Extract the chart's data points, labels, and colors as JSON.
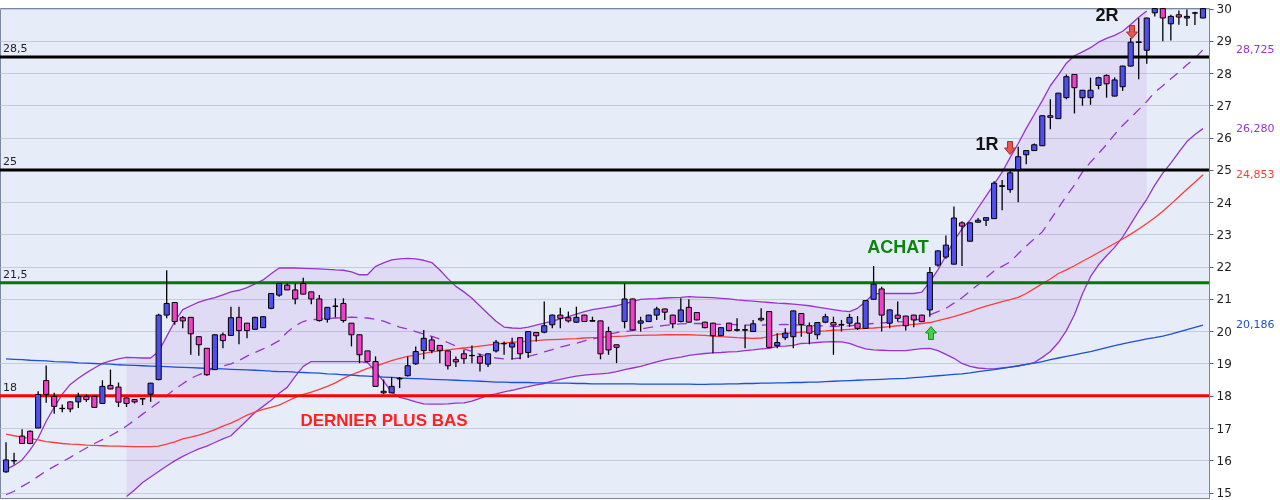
{
  "chart_data": {
    "type": "candlestick",
    "categories": [
      null,
      null,
      null,
      null,
      null,
      null,
      null,
      null,
      null,
      null,
      null,
      null,
      null,
      null,
      null,
      null,
      null,
      null,
      null,
      null,
      null,
      null,
      null,
      null,
      null,
      null,
      null,
      null,
      null,
      null,
      null,
      null,
      null,
      null,
      null,
      null,
      null,
      null,
      null,
      null,
      null,
      null,
      null,
      null,
      null,
      null,
      null,
      null,
      null,
      null,
      null,
      null,
      null,
      null,
      null,
      null,
      null,
      null,
      null,
      null,
      null,
      null,
      null,
      null,
      null,
      null,
      null,
      null,
      null,
      null,
      null,
      null,
      null,
      null,
      null,
      null,
      null,
      null,
      null,
      null,
      null,
      null,
      null,
      null,
      null,
      null,
      null,
      null,
      null,
      null,
      null,
      null,
      null,
      null,
      null,
      null,
      null,
      null,
      null,
      null,
      null,
      null,
      null,
      null,
      null,
      null,
      null,
      null,
      null,
      null,
      null,
      null,
      null,
      null,
      null,
      null,
      null,
      null,
      null,
      null,
      null,
      null,
      null,
      null,
      null,
      null,
      null,
      null,
      null,
      null,
      null,
      null,
      null,
      null,
      null,
      null,
      null,
      null,
      null,
      null,
      null,
      null,
      null,
      null,
      null,
      null,
      null,
      null,
      null,
      null
    ],
    "series": [
      {
        "type": "line",
        "color": "#9933cc",
        "values": [
          15.72,
          15.84,
          16.01,
          16.32,
          16.69,
          17.21,
          17.64,
          18.05,
          18.35,
          18.54,
          18.71,
          18.86,
          19.0,
          19.08,
          19.14,
          19.19,
          19.18,
          19.17,
          19.17,
          19.37,
          19.84,
          20.3,
          20.67,
          20.79,
          20.9,
          20.98,
          21.04,
          21.13,
          21.22,
          21.27,
          21.35,
          21.47,
          21.59,
          21.78,
          21.96,
          21.96,
          21.96,
          21.95,
          21.94,
          21.93,
          21.92,
          21.9,
          21.89,
          21.84,
          21.75,
          21.75,
          22.01,
          22.12,
          22.21,
          22.24,
          22.26,
          22.24,
          22.2,
          22.13,
          21.9,
          21.63,
          21.39,
          21.22,
          21.02,
          20.78,
          20.54,
          20.31,
          20.13,
          20.1,
          20.09,
          20.13,
          20.19,
          20.25,
          20.31,
          20.38,
          20.45,
          20.53,
          20.61,
          20.67,
          20.71,
          20.75,
          20.79,
          20.85,
          20.92,
          20.99,
          21.0,
          21.01,
          21.03,
          21.04,
          21.05,
          21.07,
          21.06,
          21.05,
          21.04,
          21.02,
          21.0,
          20.97,
          20.95,
          20.93,
          20.91,
          20.89,
          20.87,
          20.86,
          20.84,
          20.82,
          20.79,
          20.75,
          20.71,
          20.67,
          20.63,
          20.61,
          20.71,
          20.92,
          21.16,
          21.17,
          21.17,
          21.17,
          21.17,
          21.17,
          21.21,
          21.53,
          21.9,
          22.34,
          22.8,
          23.17,
          23.44,
          23.82,
          24.19,
          24.56,
          24.93,
          25.39,
          25.82,
          26.29,
          26.72,
          27.15,
          27.61,
          27.95,
          28.31,
          28.54,
          28.66,
          28.79,
          28.96,
          29.08,
          29.17,
          29.3,
          29.51,
          29.73,
          29.93,
          null,
          null,
          null,
          null,
          null,
          null,
          null
        ]
      },
      {
        "type": "line",
        "color": "#9933cc",
        "values": [
          null,
          null,
          null,
          null,
          null,
          null,
          null,
          null,
          null,
          null,
          null,
          null,
          null,
          null,
          null,
          14.88,
          15.08,
          15.31,
          15.48,
          15.65,
          15.82,
          15.98,
          16.12,
          16.24,
          16.35,
          16.44,
          16.55,
          16.66,
          16.76,
          17.0,
          17.24,
          17.49,
          17.67,
          17.86,
          18.08,
          18.26,
          18.6,
          18.91,
          19.06,
          19.06,
          19.06,
          19.06,
          19.06,
          19.06,
          19.06,
          19.03,
          18.75,
          18.45,
          18.11,
          17.95,
          17.89,
          17.81,
          17.75,
          17.74,
          17.74,
          17.75,
          17.77,
          17.78,
          17.83,
          17.92,
          18.01,
          18.06,
          18.12,
          18.17,
          18.23,
          18.28,
          18.34,
          18.38,
          18.45,
          18.51,
          18.56,
          18.61,
          18.64,
          18.66,
          18.68,
          18.7,
          18.75,
          18.81,
          18.86,
          18.91,
          18.98,
          19.05,
          19.11,
          19.16,
          19.2,
          19.25,
          19.28,
          19.31,
          19.33,
          19.34,
          19.36,
          19.37,
          19.4,
          19.42,
          19.45,
          19.47,
          19.53,
          19.54,
          19.56,
          19.62,
          19.63,
          19.65,
          19.67,
          19.68,
          19.67,
          19.62,
          19.53,
          19.45,
          19.42,
          19.41,
          19.4,
          19.4,
          19.4,
          19.43,
          19.46,
          19.47,
          19.4,
          19.28,
          19.16,
          19.0,
          18.91,
          18.86,
          18.84,
          18.83,
          18.86,
          18.89,
          18.92,
          18.97,
          19.03,
          19.19,
          19.37,
          19.65,
          20.02,
          20.51,
          21.16,
          21.69,
          22.06,
          22.34,
          22.6,
          22.92,
          23.32,
          23.72,
          24.09,
          24.53,
          24.9,
          25.21,
          25.55,
          25.88,
          26.1,
          26.28
        ]
      },
      {
        "type": "line",
        "color": "#9933cc",
        "line_style": "dashed",
        "values": [
          14.93,
          15.04,
          15.19,
          15.33,
          15.5,
          15.67,
          15.81,
          15.95,
          16.09,
          16.24,
          16.38,
          16.52,
          16.64,
          16.76,
          16.9,
          17.06,
          17.24,
          17.43,
          17.61,
          17.8,
          18.01,
          18.2,
          18.37,
          18.54,
          18.65,
          18.75,
          18.88,
          18.92,
          18.99,
          19.09,
          19.23,
          19.34,
          19.45,
          19.57,
          19.71,
          19.97,
          20.17,
          20.3,
          20.36,
          20.37,
          20.39,
          20.41,
          20.42,
          20.44,
          20.42,
          20.41,
          20.37,
          20.31,
          20.22,
          20.13,
          20.07,
          19.99,
          19.91,
          19.84,
          19.76,
          19.65,
          19.54,
          19.45,
          19.37,
          19.28,
          19.22,
          19.17,
          19.14,
          19.14,
          19.17,
          19.22,
          19.28,
          19.36,
          19.43,
          19.51,
          19.57,
          19.63,
          19.7,
          19.76,
          19.82,
          19.9,
          19.96,
          19.99,
          20.02,
          20.07,
          20.11,
          20.15,
          20.18,
          20.21,
          20.23,
          20.24,
          20.24,
          20.23,
          20.22,
          20.21,
          20.21,
          20.2,
          20.19,
          20.19,
          20.19,
          20.2,
          20.2,
          20.21,
          20.2,
          20.19,
          20.18,
          20.17,
          20.16,
          20.14,
          20.16,
          20.17,
          20.19,
          20.22,
          20.24,
          20.26,
          20.27,
          20.29,
          20.3,
          20.33,
          20.39,
          20.51,
          20.61,
          20.71,
          20.87,
          21.04,
          21.24,
          21.44,
          21.66,
          21.87,
          22.01,
          22.15,
          22.4,
          22.64,
          22.86,
          23.08,
          23.45,
          23.82,
          24.19,
          24.53,
          24.94,
          25.24,
          25.51,
          25.79,
          26.1,
          26.38,
          26.62,
          26.87,
          27.12,
          27.41,
          27.61,
          27.83,
          28.03,
          28.26,
          28.46,
          28.725
        ],
        "lower": [
          null,
          null,
          null,
          null,
          null,
          null,
          null,
          null,
          null,
          null,
          null,
          null,
          null,
          null,
          null,
          14.88,
          15.08,
          15.31,
          15.48,
          15.65,
          15.82,
          15.98,
          16.12,
          16.24,
          16.35,
          16.44,
          16.55,
          16.66,
          16.76,
          17.0,
          17.24,
          17.49,
          17.67,
          17.86,
          18.08,
          18.26,
          18.6,
          18.91,
          19.06,
          19.06,
          19.06,
          19.06,
          19.06,
          19.06,
          19.06,
          19.03,
          18.75,
          18.45,
          18.11,
          17.95,
          17.89,
          17.81,
          17.75,
          17.74,
          17.74,
          17.75,
          17.77,
          17.78,
          17.83,
          17.92,
          18.01,
          18.06,
          18.12,
          18.17,
          18.23,
          18.28,
          18.34,
          18.38,
          18.45,
          18.51,
          18.56,
          18.61,
          18.64,
          18.66,
          18.68,
          18.7,
          18.75,
          18.81,
          18.86,
          18.91,
          18.98,
          19.05,
          19.11,
          19.16,
          19.2,
          19.25,
          19.28,
          19.31,
          19.33,
          19.34,
          19.36,
          19.37,
          19.4,
          19.42,
          19.45,
          19.47,
          19.53,
          19.54,
          19.56,
          19.62,
          19.63,
          19.65,
          19.67,
          19.68,
          19.67,
          19.62,
          19.53,
          19.45,
          19.42,
          19.41,
          19.4,
          19.4,
          19.4,
          19.43,
          19.46,
          19.47,
          19.4,
          19.28,
          19.16,
          19.0,
          18.91,
          18.86,
          18.84,
          18.83,
          18.86,
          18.89,
          18.92,
          18.97,
          19.03,
          19.19,
          19.37,
          19.65,
          20.02,
          20.51,
          21.16,
          21.69,
          22.06,
          22.34,
          22.6,
          22.92,
          23.32,
          23.72,
          24.09,
          null,
          null,
          null,
          null,
          null,
          null,
          null
        ],
        "upper": [
          null,
          null,
          null,
          null,
          null,
          null,
          null,
          null,
          null,
          null,
          null,
          null,
          null,
          null,
          null,
          19.19,
          19.18,
          19.17,
          19.17,
          19.37,
          19.84,
          20.3,
          20.67,
          20.79,
          20.9,
          20.98,
          21.04,
          21.13,
          21.22,
          21.27,
          21.35,
          21.47,
          21.59,
          21.78,
          21.96,
          21.96,
          21.96,
          21.95,
          21.94,
          21.93,
          21.92,
          21.9,
          21.89,
          21.84,
          21.75,
          21.75,
          22.01,
          22.12,
          22.21,
          22.24,
          22.26,
          22.24,
          22.2,
          22.13,
          21.9,
          21.63,
          21.39,
          21.22,
          21.02,
          20.78,
          20.54,
          20.31,
          20.13,
          20.1,
          20.09,
          20.13,
          20.19,
          20.25,
          20.31,
          20.38,
          20.45,
          20.53,
          20.61,
          20.67,
          20.71,
          20.75,
          20.79,
          20.85,
          20.92,
          20.99,
          21.0,
          21.01,
          21.03,
          21.04,
          21.05,
          21.07,
          21.06,
          21.05,
          21.04,
          21.02,
          21.0,
          20.97,
          20.95,
          20.93,
          20.91,
          20.89,
          20.87,
          20.86,
          20.84,
          20.82,
          20.79,
          20.75,
          20.71,
          20.67,
          20.63,
          20.61,
          20.71,
          20.92,
          21.16,
          21.17,
          21.17,
          21.17,
          21.17,
          21.17,
          21.21,
          21.53,
          21.9,
          22.34,
          22.8,
          23.17,
          23.44,
          23.82,
          24.19,
          24.56,
          24.93,
          25.39,
          25.82,
          26.29,
          26.72,
          27.15,
          27.61,
          27.95,
          28.31,
          28.54,
          28.66,
          28.79,
          28.96,
          29.08,
          29.17,
          29.3,
          29.51,
          29.73,
          29.93,
          null,
          null,
          null,
          null,
          null,
          null,
          null
        ]
      },
      {
        "type": "line",
        "color": "#ff3b3b",
        "values": [
          16.81,
          16.76,
          16.72,
          16.67,
          16.63,
          16.58,
          16.55,
          16.52,
          16.5,
          16.49,
          16.47,
          16.46,
          16.45,
          16.44,
          16.44,
          16.43,
          16.42,
          16.42,
          16.42,
          16.44,
          16.5,
          16.57,
          16.66,
          16.72,
          16.78,
          16.86,
          16.95,
          17.06,
          17.15,
          17.27,
          17.4,
          17.49,
          17.58,
          17.64,
          17.71,
          17.83,
          17.95,
          18.04,
          18.11,
          18.2,
          18.29,
          18.4,
          18.54,
          18.65,
          18.75,
          18.85,
          18.91,
          19.0,
          19.09,
          19.16,
          19.22,
          19.26,
          19.31,
          19.36,
          19.39,
          19.42,
          19.45,
          19.48,
          19.51,
          19.54,
          19.57,
          19.6,
          19.63,
          19.66,
          19.67,
          19.69,
          19.71,
          19.73,
          19.74,
          19.75,
          19.76,
          19.77,
          19.79,
          19.8,
          19.81,
          19.83,
          19.84,
          19.85,
          19.87,
          19.87,
          19.88,
          19.88,
          19.89,
          19.89,
          19.89,
          19.89,
          19.88,
          19.87,
          19.85,
          19.83,
          19.82,
          19.8,
          19.79,
          19.78,
          19.79,
          19.83,
          19.9,
          19.93,
          19.95,
          19.97,
          19.98,
          20.0,
          20.01,
          20.03,
          20.04,
          20.06,
          20.07,
          20.09,
          20.1,
          20.12,
          20.14,
          20.17,
          20.19,
          20.21,
          20.24,
          20.27,
          20.33,
          20.39,
          20.45,
          20.53,
          20.61,
          20.7,
          20.78,
          20.85,
          20.92,
          20.98,
          21.05,
          21.17,
          21.32,
          21.47,
          21.62,
          21.79,
          21.9,
          22.03,
          22.17,
          22.3,
          22.44,
          22.58,
          22.72,
          22.86,
          23.01,
          23.17,
          23.34,
          23.52,
          23.72,
          23.94,
          24.17,
          24.4,
          24.62,
          24.853
        ]
      },
      {
        "type": "line",
        "color": "#1d4fd8",
        "values": [
          19.14,
          19.13,
          19.12,
          19.1,
          19.09,
          19.08,
          19.06,
          19.05,
          19.04,
          19.02,
          19.01,
          19.0,
          18.99,
          18.98,
          18.96,
          18.95,
          18.94,
          18.93,
          18.92,
          18.91,
          18.9,
          18.89,
          18.88,
          18.87,
          18.86,
          18.85,
          18.84,
          18.83,
          18.82,
          18.81,
          18.8,
          18.79,
          18.78,
          18.76,
          18.75,
          18.75,
          18.73,
          18.72,
          18.71,
          18.7,
          18.68,
          18.67,
          18.65,
          18.64,
          18.62,
          18.61,
          18.59,
          18.58,
          18.57,
          18.55,
          18.54,
          18.53,
          18.52,
          18.51,
          18.5,
          18.49,
          18.48,
          18.47,
          18.46,
          18.45,
          18.44,
          18.42,
          18.42,
          18.41,
          18.41,
          18.41,
          18.4,
          18.4,
          18.39,
          18.39,
          18.39,
          18.38,
          18.38,
          18.37,
          18.37,
          18.37,
          18.37,
          18.37,
          18.37,
          18.36,
          18.36,
          18.36,
          18.36,
          18.36,
          18.36,
          18.36,
          18.35,
          18.35,
          18.36,
          18.36,
          18.37,
          18.37,
          18.38,
          18.38,
          18.39,
          18.39,
          18.4,
          18.4,
          18.41,
          18.41,
          18.42,
          18.42,
          18.44,
          18.45,
          18.46,
          18.47,
          18.48,
          18.49,
          18.5,
          18.51,
          18.52,
          18.53,
          18.54,
          18.56,
          18.58,
          18.6,
          18.62,
          18.64,
          18.66,
          18.68,
          18.71,
          18.75,
          18.78,
          18.81,
          18.85,
          18.89,
          18.93,
          18.97,
          19.01,
          19.06,
          19.12,
          19.17,
          19.22,
          19.27,
          19.32,
          19.37,
          19.43,
          19.49,
          19.55,
          19.61,
          19.66,
          19.71,
          19.76,
          19.8,
          19.85,
          19.91,
          19.98,
          20.05,
          20.12,
          20.186
        ]
      },
      {
        "ohlc": [
          [
            15.64,
            16.56,
            15.61,
            16.01
          ],
          [
            15.98,
            16.23,
            15.87,
            15.99
          ],
          [
            16.75,
            16.96,
            16.52,
            16.52
          ],
          [
            16.9,
            16.92,
            16.5,
            16.52
          ],
          [
            17.0,
            18.14,
            17.0,
            18.04
          ],
          [
            18.47,
            18.94,
            17.78,
            18.04
          ],
          [
            17.98,
            18.09,
            17.44,
            17.67
          ],
          [
            17.6,
            17.73,
            17.49,
            17.61
          ],
          [
            17.81,
            17.83,
            17.49,
            17.59
          ],
          [
            17.81,
            18.09,
            17.62,
            17.98
          ],
          [
            17.98,
            18.04,
            17.81,
            17.88
          ],
          [
            17.98,
            18.0,
            17.64,
            17.64
          ],
          [
            17.76,
            18.48,
            17.76,
            18.29
          ],
          [
            18.32,
            18.81,
            18.2,
            18.21
          ],
          [
            18.27,
            18.41,
            17.65,
            17.8
          ],
          [
            17.93,
            17.95,
            17.65,
            17.76
          ],
          [
            17.88,
            17.9,
            17.76,
            17.81
          ],
          [
            17.9,
            17.93,
            17.71,
            17.91
          ],
          [
            18.05,
            18.4,
            17.81,
            18.39
          ],
          [
            18.5,
            20.54,
            18.48,
            20.5
          ],
          [
            20.5,
            21.89,
            20.4,
            20.86
          ],
          [
            20.89,
            20.89,
            20.2,
            20.3
          ],
          [
            20.42,
            20.47,
            20.09,
            20.32
          ],
          [
            20.43,
            20.44,
            19.27,
            19.92
          ],
          [
            19.83,
            19.84,
            19.24,
            19.58
          ],
          [
            19.47,
            19.47,
            18.62,
            18.65
          ],
          [
            18.81,
            19.9,
            18.81,
            19.89
          ],
          [
            19.89,
            19.96,
            19.47,
            19.71
          ],
          [
            19.87,
            20.76,
            19.87,
            20.42
          ],
          [
            20.43,
            20.76,
            19.6,
            20.02
          ],
          [
            20.25,
            20.25,
            19.78,
            20.02
          ],
          [
            20.06,
            20.45,
            20.05,
            20.43
          ],
          [
            20.11,
            20.46,
            20.1,
            20.45
          ],
          [
            20.71,
            21.18,
            20.68,
            21.17
          ],
          [
            21.12,
            21.5,
            21.07,
            21.48
          ],
          [
            21.43,
            21.48,
            21.28,
            21.28
          ],
          [
            21.28,
            21.48,
            20.84,
            21.0
          ],
          [
            21.48,
            21.66,
            21.15,
            21.15
          ],
          [
            21.22,
            21.22,
            20.84,
            21.0
          ],
          [
            21.0,
            21.12,
            20.3,
            20.33
          ],
          [
            20.37,
            20.74,
            20.27,
            20.74
          ],
          [
            20.78,
            21.02,
            20.43,
            20.77
          ],
          [
            20.86,
            21.02,
            20.27,
            20.33
          ],
          [
            20.25,
            20.25,
            19.53,
            19.89
          ],
          [
            19.89,
            19.9,
            19.01,
            19.27
          ],
          [
            19.39,
            19.39,
            19.03,
            19.06
          ],
          [
            19.06,
            19.22,
            18.29,
            18.29
          ],
          [
            18.14,
            18.5,
            18.05,
            18.09
          ],
          [
            18.09,
            18.58,
            18.08,
            18.29
          ],
          [
            18.52,
            18.58,
            18.24,
            18.54
          ],
          [
            18.62,
            19.22,
            18.6,
            18.93
          ],
          [
            18.99,
            19.53,
            18.96,
            19.37
          ],
          [
            19.4,
            20.04,
            19.13,
            19.78
          ],
          [
            19.73,
            19.83,
            19.32,
            19.4
          ],
          [
            19.56,
            19.57,
            19.01,
            19.4
          ],
          [
            19.39,
            19.4,
            18.81,
            18.93
          ],
          [
            19.12,
            19.22,
            18.89,
            19.05
          ],
          [
            19.3,
            19.42,
            18.99,
            19.15
          ],
          [
            19.25,
            19.56,
            19.01,
            19.24
          ],
          [
            19.22,
            19.3,
            18.75,
            19.01
          ],
          [
            18.98,
            19.31,
            18.89,
            19.3
          ],
          [
            19.39,
            19.73,
            19.34,
            19.66
          ],
          [
            19.61,
            19.68,
            19.27,
            19.62
          ],
          [
            19.51,
            19.8,
            19.12,
            19.63
          ],
          [
            19.8,
            19.8,
            19.13,
            19.3
          ],
          [
            19.34,
            20.0,
            19.17,
            19.99
          ],
          [
            19.96,
            19.97,
            19.68,
            19.86
          ],
          [
            19.97,
            20.92,
            19.94,
            20.17
          ],
          [
            20.2,
            20.52,
            20.09,
            20.5
          ],
          [
            20.5,
            20.73,
            20.09,
            20.4
          ],
          [
            20.42,
            20.61,
            20.27,
            20.32
          ],
          [
            20.28,
            20.76,
            20.26,
            20.43
          ],
          [
            20.5,
            20.51,
            20.29,
            20.3
          ],
          [
            20.33,
            20.45,
            20.3,
            20.31
          ],
          [
            20.32,
            20.33,
            19.13,
            19.3
          ],
          [
            19.99,
            20.14,
            19.27,
            19.42
          ],
          [
            19.58,
            19.59,
            19.01,
            19.5
          ],
          [
            20.3,
            21.48,
            20.09,
            21.0
          ],
          [
            21.0,
            21.01,
            20.03,
            20.04
          ],
          [
            20.25,
            20.45,
            19.99,
            20.32
          ],
          [
            20.3,
            20.51,
            20.29,
            20.5
          ],
          [
            20.5,
            20.76,
            20.35,
            20.69
          ],
          [
            20.69,
            20.7,
            20.35,
            20.59
          ],
          [
            20.5,
            20.51,
            20.09,
            20.23
          ],
          [
            20.3,
            21.02,
            20.28,
            20.66
          ],
          [
            20.74,
            20.99,
            20.27,
            20.28
          ],
          [
            20.58,
            20.59,
            20.34,
            20.35
          ],
          [
            20.28,
            20.29,
            20.09,
            20.11
          ],
          [
            20.25,
            20.26,
            19.32,
            19.86
          ],
          [
            19.86,
            20.12,
            19.85,
            20.11
          ],
          [
            20.25,
            20.26,
            20.0,
            20.02
          ],
          [
            20.05,
            20.4,
            19.99,
            20.03
          ],
          [
            20.05,
            20.2,
            19.47,
            20.03
          ],
          [
            19.99,
            20.35,
            19.98,
            20.23
          ],
          [
            20.4,
            20.71,
            20.3,
            20.35
          ],
          [
            20.61,
            20.62,
            19.49,
            19.5
          ],
          [
            19.55,
            19.94,
            19.47,
            19.65
          ],
          [
            19.8,
            20.09,
            19.73,
            19.94
          ],
          [
            19.83,
            20.64,
            19.47,
            20.63
          ],
          [
            20.55,
            20.56,
            19.83,
            20.21
          ],
          [
            20.17,
            20.27,
            19.6,
            19.94
          ],
          [
            19.89,
            20.28,
            19.75,
            20.27
          ],
          [
            20.28,
            20.54,
            20.25,
            20.45
          ],
          [
            20.27,
            20.45,
            19.27,
            20.19
          ],
          [
            20.21,
            20.35,
            19.99,
            20.19
          ],
          [
            20.25,
            20.54,
            20.14,
            20.43
          ],
          [
            20.25,
            20.47,
            20.04,
            20.09
          ],
          [
            20.09,
            20.96,
            20.08,
            20.95
          ],
          [
            20.99,
            22.02,
            20.98,
            21.46
          ],
          [
            21.31,
            21.38,
            19.99,
            20.5
          ],
          [
            20.25,
            20.67,
            20.09,
            20.66
          ],
          [
            20.5,
            20.92,
            20.3,
            20.4
          ],
          [
            20.47,
            20.48,
            20.02,
            20.17
          ],
          [
            20.5,
            20.51,
            20.12,
            20.35
          ],
          [
            20.5,
            20.51,
            20.28,
            20.3
          ],
          [
            20.66,
            21.99,
            20.45,
            21.82
          ],
          [
            22.05,
            22.5,
            22.0,
            22.49
          ],
          [
            22.3,
            22.97,
            22.25,
            22.67
          ],
          [
            22.08,
            23.87,
            22.07,
            23.51
          ],
          [
            23.36,
            23.41,
            22.02,
            23.26
          ],
          [
            22.79,
            23.37,
            22.78,
            23.36
          ],
          [
            23.38,
            23.51,
            23.37,
            23.44
          ],
          [
            23.44,
            23.53,
            23.26,
            23.52
          ],
          [
            23.49,
            24.65,
            23.48,
            24.59
          ],
          [
            24.49,
            24.69,
            23.75,
            24.51
          ],
          [
            24.39,
            25.03,
            24.29,
            24.91
          ],
          [
            25.01,
            25.72,
            24.0,
            25.41
          ],
          [
            25.47,
            25.61,
            25.18,
            25.6
          ],
          [
            25.6,
            25.82,
            25.59,
            25.78
          ],
          [
            25.75,
            26.69,
            25.74,
            26.68
          ],
          [
            26.68,
            27.19,
            26.26,
            26.63
          ],
          [
            26.59,
            27.39,
            26.58,
            27.38
          ],
          [
            27.24,
            27.96,
            27.19,
            27.89
          ],
          [
            27.96,
            27.97,
            26.75,
            27.55
          ],
          [
            27.24,
            27.48,
            26.99,
            27.47
          ],
          [
            27.24,
            27.86,
            27.02,
            27.47
          ],
          [
            27.62,
            27.89,
            27.5,
            27.86
          ],
          [
            27.93,
            27.96,
            27.24,
            27.67
          ],
          [
            27.29,
            27.87,
            27.28,
            27.79
          ],
          [
            27.58,
            28.23,
            27.45,
            28.22
          ],
          [
            28.22,
            29.09,
            28.21,
            28.96
          ],
          [
            28.95,
            29.71,
            27.81,
            28.97
          ],
          [
            28.71,
            29.72,
            28.29,
            29.71
          ],
          [
            29.87,
            30.01,
            29.76,
            30.0
          ],
          [
            30.0,
            30.01,
            28.99,
            29.71
          ],
          [
            29.53,
            29.81,
            29.01,
            29.76
          ],
          [
            29.81,
            29.94,
            29.5,
            29.74
          ],
          [
            29.71,
            29.97,
            29.46,
            29.76
          ],
          [
            29.86,
            29.9,
            29.49,
            29.87
          ],
          [
            29.71,
            30.01,
            29.7,
            30.0
          ]
        ],
        "colors": [
          "#4f4ff0",
          "#4f4ff0",
          "#f03fc8",
          "#f03fc8",
          "#4f4ff0",
          "#f03fc8",
          "#f03fc8",
          "#4f4ff0",
          "#f03fc8",
          "#4f4ff0",
          "#f03fc8",
          "#f03fc8",
          "#4f4ff0",
          "#f03fc8",
          "#f03fc8",
          "#f03fc8",
          "#f03fc8",
          "#4f4ff0",
          "#4f4ff0",
          "#4f4ff0",
          "#4f4ff0",
          "#f03fc8",
          "#f03fc8",
          "#f03fc8",
          "#f03fc8",
          "#f03fc8",
          "#4f4ff0",
          "#f03fc8",
          "#4f4ff0",
          "#f03fc8",
          "#f03fc8",
          "#4f4ff0",
          "#4f4ff0",
          "#4f4ff0",
          "#4f4ff0",
          "#f03fc8",
          "#f03fc8",
          "#f03fc8",
          "#f03fc8",
          "#f03fc8",
          "#4f4ff0",
          "#f03fc8",
          "#f03fc8",
          "#f03fc8",
          "#f03fc8",
          "#f03fc8",
          "#f03fc8",
          "#f03fc8",
          "#4f4ff0",
          "#4f4ff0",
          "#4f4ff0",
          "#4f4ff0",
          "#4f4ff0",
          "#f03fc8",
          "#f03fc8",
          "#f03fc8",
          "#f03fc8",
          "#f03fc8",
          "#f03fc8",
          "#f03fc8",
          "#4f4ff0",
          "#4f4ff0",
          "#4f4ff0",
          "#4f4ff0",
          "#f03fc8",
          "#4f4ff0",
          "#f03fc8",
          "#4f4ff0",
          "#4f4ff0",
          "#f03fc8",
          "#f03fc8",
          "#4f4ff0",
          "#f03fc8",
          "#f03fc8",
          "#f03fc8",
          "#f03fc8",
          "#f03fc8",
          "#4f4ff0",
          "#f03fc8",
          "#4f4ff0",
          "#4f4ff0",
          "#4f4ff0",
          "#f03fc8",
          "#f03fc8",
          "#4f4ff0",
          "#f03fc8",
          "#f03fc8",
          "#f03fc8",
          "#f03fc8",
          "#4f4ff0",
          "#f03fc8",
          "#f03fc8",
          "#f03fc8",
          "#4f4ff0",
          "#f03fc8",
          "#f03fc8",
          "#4f4ff0",
          "#4f4ff0",
          "#4f4ff0",
          "#f03fc8",
          "#f03fc8",
          "#4f4ff0",
          "#4f4ff0",
          "#f03fc8",
          "#f03fc8",
          "#4f4ff0",
          "#f03fc8",
          "#4f4ff0",
          "#4f4ff0",
          "#f03fc8",
          "#4f4ff0",
          "#f03fc8",
          "#f03fc8",
          "#f03fc8",
          "#f03fc8",
          "#4f4ff0",
          "#4f4ff0",
          "#4f4ff0",
          "#4f4ff0",
          "#f03fc8",
          "#4f4ff0",
          "#4f4ff0",
          "#4f4ff0",
          "#4f4ff0",
          "#4f4ff0",
          "#4f4ff0",
          "#4f4ff0",
          "#4f4ff0",
          "#4f4ff0",
          "#4f4ff0",
          "#f03fc8",
          "#4f4ff0",
          "#4f4ff0",
          "#f03fc8",
          "#4f4ff0",
          "#4f4ff0",
          "#4f4ff0",
          "#f03fc8",
          "#4f4ff0",
          "#4f4ff0",
          "#4f4ff0",
          "#4f4ff0",
          "#4f4ff0",
          "#4f4ff0",
          "#f03fc8",
          "#4f4ff0",
          "#f03fc8",
          "#4f4ff0",
          "#4f4ff0",
          "#4f4ff0"
        ]
      }
    ],
    "ylim": [
      14.83,
      30.02
    ],
    "yticks": [
      15,
      16,
      17,
      18,
      19,
      20,
      21,
      22,
      23,
      24,
      25,
      26,
      27,
      28,
      29,
      30
    ],
    "grid": "y",
    "tick_labels": "y",
    "ref_lines": [
      {
        "axis": "y",
        "value": 28.5,
        "label": "28,5",
        "color": "#000000"
      },
      {
        "axis": "y",
        "value": 25,
        "label": "25",
        "color": "#000000"
      },
      {
        "axis": "y",
        "value": 21.5,
        "label": "21,5",
        "color": "#007a00"
      },
      {
        "axis": "y",
        "value": 18,
        "label": "18",
        "color": "#ff0000"
      }
    ],
    "annotations": [
      "2R",
      "1R",
      "ACHAT",
      "DERNIER PLUS BAS",
      "28,725",
      "26,280",
      "24,853",
      "20,186"
    ]
  }
}
